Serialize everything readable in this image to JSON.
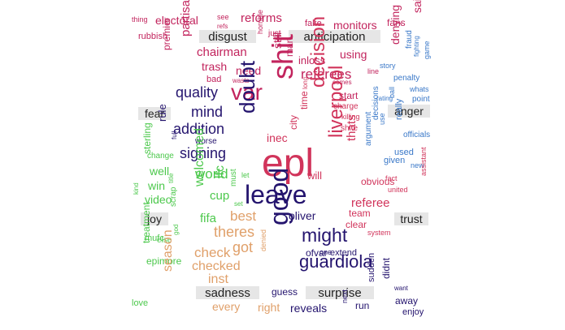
{
  "colors": {
    "anger": "#d1345b",
    "anticipation": "#c2245d",
    "disgust": "#c2245d",
    "fear": "#24146e",
    "joy": "#4cc84c",
    "sadness": "#e0a06a",
    "surprise": "#24146e",
    "trust": "#3a78c8",
    "label_bg": "#e6e6e6"
  },
  "labels": {
    "disgust": "disgust",
    "anticipation": "anticipation",
    "fear": "fear",
    "anger": "anger",
    "joy": "joy",
    "trust": "trust",
    "sadness": "sadness",
    "surprise": "surprise"
  },
  "words": [
    {
      "t": "thing",
      "c": "disgust"
    },
    {
      "t": "rubbish",
      "c": "disgust"
    },
    {
      "t": "electoral",
      "c": "disgust"
    },
    {
      "t": "see",
      "c": "disgust"
    },
    {
      "t": "refs",
      "c": "disgust"
    },
    {
      "t": "partisan",
      "c": "disgust"
    },
    {
      "t": "reforms",
      "c": "disgust"
    },
    {
      "t": "chairman",
      "c": "disgust"
    },
    {
      "t": "premier",
      "c": "disgust"
    },
    {
      "t": "trash",
      "c": "disgust"
    },
    {
      "t": "bad",
      "c": "disgust"
    },
    {
      "t": "wasts",
      "c": "disgust"
    },
    {
      "t": "need",
      "c": "disgust"
    },
    {
      "t": "just",
      "c": "disgust"
    },
    {
      "t": "horrible",
      "c": "disgust"
    },
    {
      "t": "still",
      "c": "disgust"
    },
    {
      "t": "man",
      "c": "disgust"
    },
    {
      "t": "fake",
      "c": "anticipation"
    },
    {
      "t": "monitors",
      "c": "anticipation"
    },
    {
      "t": "fans",
      "c": "anticipation"
    },
    {
      "t": "said",
      "c": "anticipation"
    },
    {
      "t": "inloss",
      "c": "anticipation"
    },
    {
      "t": "using",
      "c": "anticipation"
    },
    {
      "t": "denying",
      "c": "anticipation"
    },
    {
      "t": "referees",
      "c": "anticipation"
    },
    {
      "t": "start",
      "c": "anticipation"
    },
    {
      "t": "comes",
      "c": "anticipation"
    },
    {
      "t": "line",
      "c": "anticipation"
    },
    {
      "t": "quality",
      "c": "fear"
    },
    {
      "t": "var",
      "c": "anticipation"
    },
    {
      "t": "shit",
      "c": "anticipation"
    },
    {
      "t": "mind",
      "c": "fear"
    },
    {
      "t": "addition",
      "c": "fear"
    },
    {
      "t": "rule",
      "c": "fear"
    },
    {
      "t": "worse",
      "c": "fear"
    },
    {
      "t": "full",
      "c": "fear"
    },
    {
      "t": "signing",
      "c": "fear"
    },
    {
      "t": "doubt",
      "c": "fear"
    },
    {
      "t": "epl",
      "c": "anger"
    },
    {
      "t": "decision",
      "c": "anger"
    },
    {
      "t": "time",
      "c": "anger"
    },
    {
      "t": "long",
      "c": "anger"
    },
    {
      "t": "city",
      "c": "anger"
    },
    {
      "t": "inec",
      "c": "anger"
    },
    {
      "t": "will",
      "c": "anger"
    },
    {
      "t": "liverpool",
      "c": "anger"
    },
    {
      "t": "thats",
      "c": "anger"
    },
    {
      "t": "obvious",
      "c": "anger"
    },
    {
      "t": "killing",
      "c": "anger"
    },
    {
      "t": "shite",
      "c": "anger"
    },
    {
      "t": "charge",
      "c": "anger"
    },
    {
      "t": "referee",
      "c": "anger"
    },
    {
      "t": "team",
      "c": "anger"
    },
    {
      "t": "clear",
      "c": "anger"
    },
    {
      "t": "system",
      "c": "anger"
    },
    {
      "t": "leave",
      "c": "fear"
    },
    {
      "t": "world",
      "c": "joy"
    },
    {
      "t": "sterling",
      "c": "joy"
    },
    {
      "t": "well",
      "c": "joy"
    },
    {
      "t": "win",
      "c": "joy"
    },
    {
      "t": "video",
      "c": "joy"
    },
    {
      "t": "kind",
      "c": "joy"
    },
    {
      "t": "change",
      "c": "joy"
    },
    {
      "t": "welcomed",
      "c": "joy"
    },
    {
      "t": "fifa",
      "c": "joy"
    },
    {
      "t": "cup",
      "c": "joy"
    },
    {
      "t": "lfc",
      "c": "joy"
    },
    {
      "t": "title",
      "c": "joy"
    },
    {
      "t": "must",
      "c": "joy"
    },
    {
      "t": "let",
      "c": "joy"
    },
    {
      "t": "set",
      "c": "joy"
    },
    {
      "t": "scrap",
      "c": "joy"
    },
    {
      "t": "mufc",
      "c": "joy"
    },
    {
      "t": "treatment",
      "c": "joy"
    },
    {
      "t": "else",
      "c": "joy"
    },
    {
      "t": "god",
      "c": "joy"
    },
    {
      "t": "epimore",
      "c": "joy"
    },
    {
      "t": "love",
      "c": "joy"
    },
    {
      "t": "best",
      "c": "sadness"
    },
    {
      "t": "theres",
      "c": "sadness"
    },
    {
      "t": "got",
      "c": "sadness"
    },
    {
      "t": "check",
      "c": "sadness"
    },
    {
      "t": "checked",
      "c": "sadness"
    },
    {
      "t": "inst",
      "c": "sadness"
    },
    {
      "t": "season",
      "c": "sadness"
    },
    {
      "t": "every",
      "c": "sadness"
    },
    {
      "t": "right",
      "c": "sadness"
    },
    {
      "t": "denied",
      "c": "sadness"
    },
    {
      "t": "good",
      "c": "fear"
    },
    {
      "t": "might",
      "c": "fear"
    },
    {
      "t": "oliver",
      "c": "fear"
    },
    {
      "t": "guardiola",
      "c": "fear"
    },
    {
      "t": "ofvar",
      "c": "fear"
    },
    {
      "t": "one",
      "c": "fear"
    },
    {
      "t": "extend",
      "c": "fear"
    },
    {
      "t": "guess",
      "c": "fear"
    },
    {
      "t": "reveals",
      "c": "fear"
    },
    {
      "t": "next",
      "c": "fear"
    },
    {
      "t": "run",
      "c": "fear"
    },
    {
      "t": "sudden",
      "c": "fear"
    },
    {
      "t": "didnt",
      "c": "fear"
    },
    {
      "t": "away",
      "c": "fear"
    },
    {
      "t": "want",
      "c": "fear"
    },
    {
      "t": "enjoy",
      "c": "fear"
    },
    {
      "t": "story",
      "c": "trust"
    },
    {
      "t": "fraud",
      "c": "trust"
    },
    {
      "t": "fighting",
      "c": "trust"
    },
    {
      "t": "game",
      "c": "trust"
    },
    {
      "t": "penalty",
      "c": "trust"
    },
    {
      "t": "whats",
      "c": "trust"
    },
    {
      "t": "point",
      "c": "trust"
    },
    {
      "t": "rating",
      "c": "trust"
    },
    {
      "t": "ball",
      "c": "trust"
    },
    {
      "t": "decisions",
      "c": "trust"
    },
    {
      "t": "use",
      "c": "trust"
    },
    {
      "t": "really",
      "c": "trust"
    },
    {
      "t": "officials",
      "c": "trust"
    },
    {
      "t": "used",
      "c": "trust"
    },
    {
      "t": "argument",
      "c": "trust"
    },
    {
      "t": "given",
      "c": "trust"
    },
    {
      "t": "new",
      "c": "trust"
    },
    {
      "t": "fact",
      "c": "anger"
    },
    {
      "t": "united",
      "c": "anger"
    },
    {
      "t": "assistant",
      "c": "anger"
    }
  ]
}
